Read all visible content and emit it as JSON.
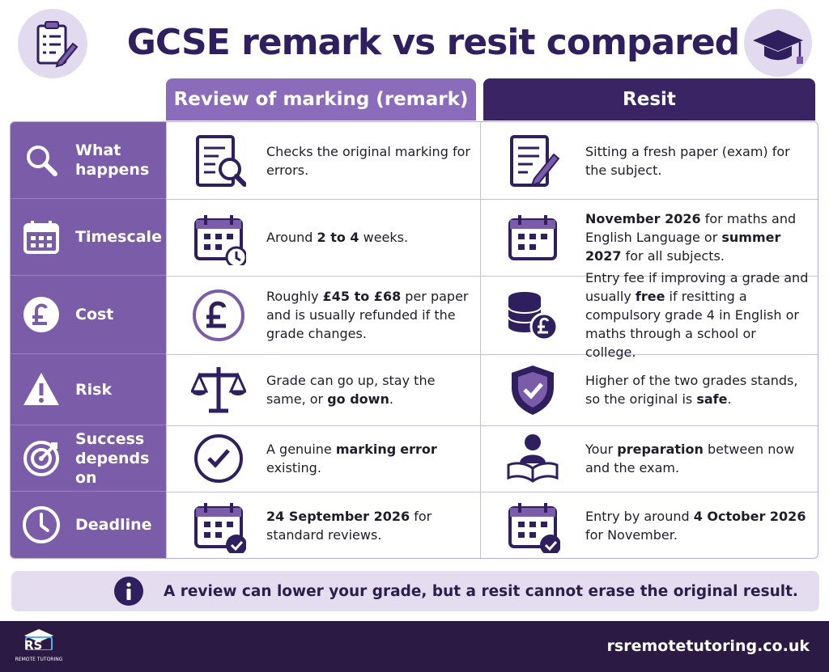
{
  "header": {
    "title": "GCSE remark vs resit compared"
  },
  "table": {
    "columns": [
      "Review of marking (remark)",
      "Resit"
    ],
    "rows": [
      {
        "label": "What happens",
        "remark": [
          {
            "text": "Checks the original marking for errors."
          }
        ],
        "resit": [
          {
            "text": "Sitting a fresh paper (exam) for the subject."
          }
        ]
      },
      {
        "label": "Timescale",
        "remark": [
          {
            "text": "Around "
          },
          {
            "text": "2 to 4",
            "bold": true
          },
          {
            "text": " weeks."
          }
        ],
        "resit": [
          {
            "text": "November 2026",
            "bold": true
          },
          {
            "text": " for maths and English Language or "
          },
          {
            "text": "summer 2027",
            "bold": true
          },
          {
            "text": " for all subjects."
          }
        ]
      },
      {
        "label": "Cost",
        "remark": [
          {
            "text": "Roughly "
          },
          {
            "text": "£45 to £68",
            "bold": true
          },
          {
            "text": " per paper and is usually refunded if the grade changes."
          }
        ],
        "resit": [
          {
            "text": "Entry fee if improving a grade and usually "
          },
          {
            "text": "free",
            "bold": true
          },
          {
            "text": " if resitting a compulsory grade 4 in English or maths through a school or college."
          }
        ]
      },
      {
        "label": "Risk",
        "remark": [
          {
            "text": "Grade can go up, stay the same, or "
          },
          {
            "text": "go down",
            "bold": true
          },
          {
            "text": "."
          }
        ],
        "resit": [
          {
            "text": "Higher of the two grades stands, so the original is "
          },
          {
            "text": "safe",
            "bold": true
          },
          {
            "text": "."
          }
        ]
      },
      {
        "label": "Success depends on",
        "remark": [
          {
            "text": "A genuine "
          },
          {
            "text": "marking",
            "bold": true
          },
          {
            "text": " "
          },
          {
            "text": "error",
            "bold": true
          },
          {
            "text": " existing."
          }
        ],
        "resit": [
          {
            "text": "Your "
          },
          {
            "text": "preparation",
            "bold": true
          },
          {
            "text": " between now and the exam."
          }
        ]
      },
      {
        "label": "Deadline",
        "remark": [
          {
            "text": "24 September 2026",
            "bold": true
          },
          {
            "text": " for standard reviews."
          }
        ],
        "resit": [
          {
            "text": "Entry by around "
          },
          {
            "text": "4 October 2026",
            "bold": true
          },
          {
            "text": " for November."
          }
        ]
      }
    ]
  },
  "note": "A review can lower your grade, but a resit cannot erase the original result.",
  "footer": {
    "logo_text": "RS",
    "logo_subtext": "REMOTE TUTORING",
    "url": "rsremotetutoring.co.uk"
  }
}
